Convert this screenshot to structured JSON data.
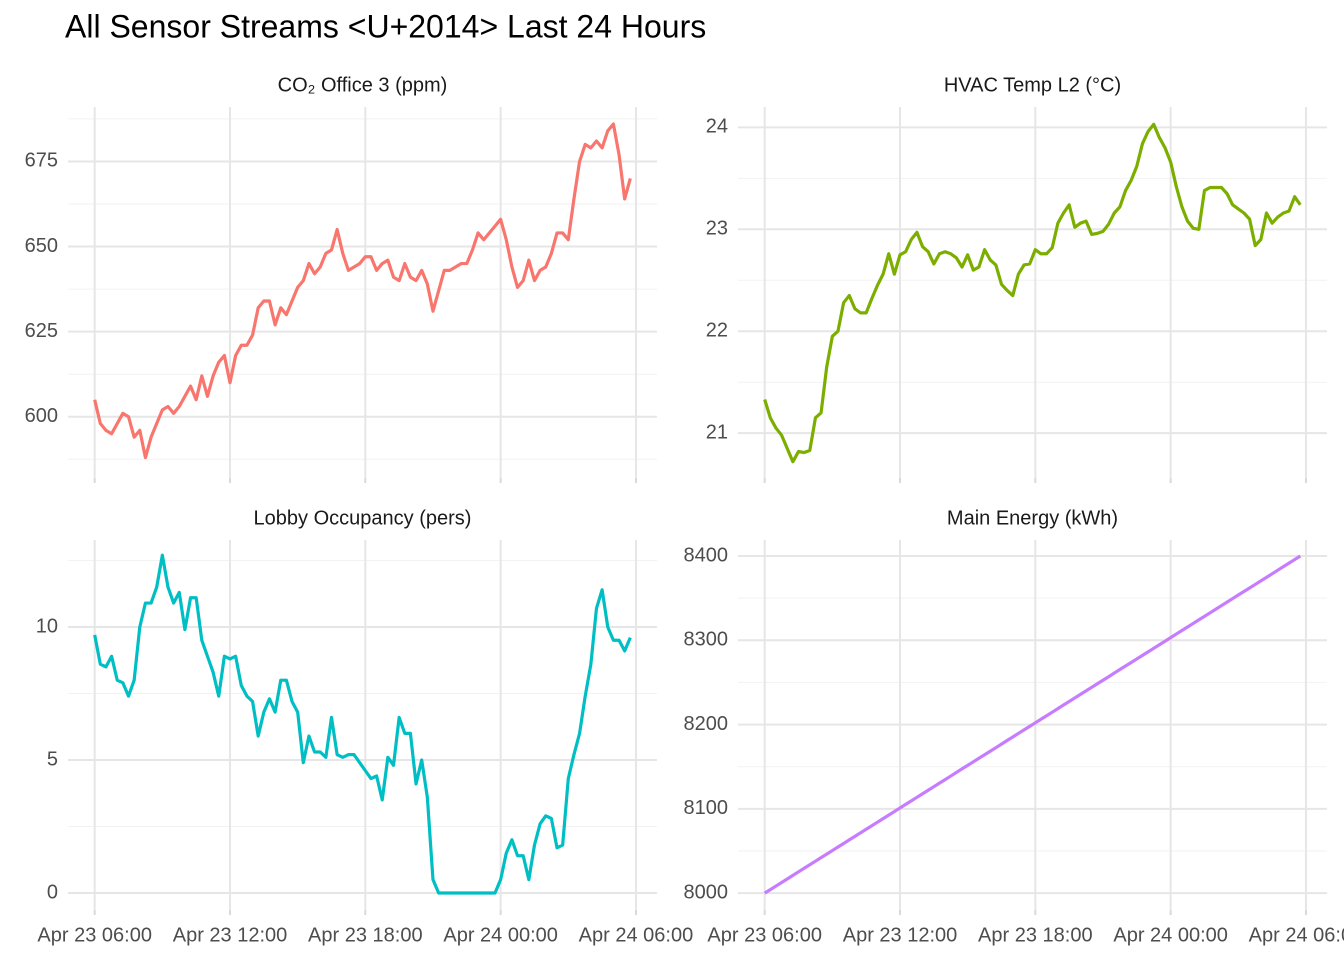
{
  "chart_data": {
    "type": "line",
    "title": "All Sensor Streams <U+2014> Last 24 Hours",
    "grid": true,
    "x": [
      "Apr 23 06:00",
      "Apr 23 06:15",
      "Apr 23 06:30",
      "Apr 23 06:45",
      "Apr 23 07:00",
      "Apr 23 07:15",
      "Apr 23 07:30",
      "Apr 23 07:45",
      "Apr 23 08:00",
      "Apr 23 08:15",
      "Apr 23 08:30",
      "Apr 23 08:45",
      "Apr 23 09:00",
      "Apr 23 09:15",
      "Apr 23 09:30",
      "Apr 23 09:45",
      "Apr 23 10:00",
      "Apr 23 10:15",
      "Apr 23 10:30",
      "Apr 23 10:45",
      "Apr 23 11:00",
      "Apr 23 11:15",
      "Apr 23 11:30",
      "Apr 23 11:45",
      "Apr 23 12:00",
      "Apr 23 12:15",
      "Apr 23 12:30",
      "Apr 23 12:45",
      "Apr 23 13:00",
      "Apr 23 13:15",
      "Apr 23 13:30",
      "Apr 23 13:45",
      "Apr 23 14:00",
      "Apr 23 14:15",
      "Apr 23 14:30",
      "Apr 23 14:45",
      "Apr 23 15:00",
      "Apr 23 15:15",
      "Apr 23 15:30",
      "Apr 23 15:45",
      "Apr 23 16:00",
      "Apr 23 16:15",
      "Apr 23 16:30",
      "Apr 23 16:45",
      "Apr 23 17:00",
      "Apr 23 17:15",
      "Apr 23 17:30",
      "Apr 23 17:45",
      "Apr 23 18:00",
      "Apr 23 18:15",
      "Apr 23 18:30",
      "Apr 23 18:45",
      "Apr 23 19:00",
      "Apr 23 19:15",
      "Apr 23 19:30",
      "Apr 23 19:45",
      "Apr 23 20:00",
      "Apr 23 20:15",
      "Apr 23 20:30",
      "Apr 23 20:45",
      "Apr 23 21:00",
      "Apr 23 21:15",
      "Apr 23 21:30",
      "Apr 23 21:45",
      "Apr 23 22:00",
      "Apr 23 22:15",
      "Apr 23 22:30",
      "Apr 23 22:45",
      "Apr 23 23:00",
      "Apr 23 23:15",
      "Apr 23 23:30",
      "Apr 23 23:45",
      "Apr 24 00:00",
      "Apr 24 00:15",
      "Apr 24 00:30",
      "Apr 24 00:45",
      "Apr 24 01:00",
      "Apr 24 01:15",
      "Apr 24 01:30",
      "Apr 24 01:45",
      "Apr 24 02:00",
      "Apr 24 02:15",
      "Apr 24 02:30",
      "Apr 24 02:45",
      "Apr 24 03:00",
      "Apr 24 03:15",
      "Apr 24 03:30",
      "Apr 24 03:45",
      "Apr 24 04:00",
      "Apr 24 04:15",
      "Apr 24 04:30",
      "Apr 24 04:45",
      "Apr 24 05:00",
      "Apr 24 05:15",
      "Apr 24 05:30",
      "Apr 24 05:45"
    ],
    "xlim": [
      "Apr 23 04:49",
      "Apr 24 06:56"
    ],
    "xticks": [
      "Apr 23 06:00",
      "Apr 23 12:00",
      "Apr 23 18:00",
      "Apr 24 00:00",
      "Apr 24 06:00"
    ],
    "panels": [
      {
        "title": "CO₂ Office 3 (ppm)",
        "color": "#F8766D",
        "ylim": [
          582,
          691
        ],
        "yticks": [
          600,
          625,
          650,
          675
        ],
        "values": [
          605,
          598,
          596,
          595,
          598,
          601,
          600,
          594,
          596,
          588,
          594,
          598,
          602,
          603,
          601,
          603,
          606,
          609,
          605,
          612,
          606,
          612,
          616,
          618,
          610,
          618,
          621,
          621,
          624,
          632,
          634,
          634,
          627,
          632,
          630,
          634,
          638,
          640,
          645,
          642,
          644,
          648,
          649,
          655,
          648,
          643,
          644,
          645,
          647,
          647,
          643,
          645,
          646,
          641,
          640,
          645,
          641,
          640,
          643,
          639,
          631,
          637,
          643,
          643,
          644,
          645,
          645,
          649,
          654,
          652,
          654,
          656,
          658,
          652,
          644,
          638,
          640,
          646,
          640,
          643,
          644,
          648,
          654,
          654,
          652,
          664,
          675,
          680,
          679,
          681,
          679,
          684,
          686,
          677,
          664,
          670
        ]
      },
      {
        "title": "HVAC Temp L2 (°C)",
        "color": "#7CAE00",
        "ylim": [
          20.56,
          24.2
        ],
        "yticks": [
          21,
          22,
          23,
          24
        ],
        "values": [
          21.33,
          21.15,
          21.05,
          20.98,
          20.85,
          20.72,
          20.82,
          20.81,
          20.83,
          21.15,
          21.2,
          21.65,
          21.95,
          22.0,
          22.28,
          22.35,
          22.22,
          22.18,
          22.18,
          22.32,
          22.45,
          22.56,
          22.76,
          22.56,
          22.75,
          22.78,
          22.9,
          22.97,
          22.83,
          22.78,
          22.66,
          22.76,
          22.78,
          22.76,
          22.72,
          22.63,
          22.75,
          22.6,
          22.63,
          22.8,
          22.7,
          22.65,
          22.46,
          22.4,
          22.35,
          22.56,
          22.65,
          22.66,
          22.8,
          22.76,
          22.76,
          22.82,
          23.06,
          23.16,
          23.24,
          23.02,
          23.06,
          23.08,
          22.95,
          22.96,
          22.98,
          23.05,
          23.16,
          23.22,
          23.38,
          23.48,
          23.62,
          23.84,
          23.96,
          24.03,
          23.9,
          23.8,
          23.66,
          23.42,
          23.22,
          23.08,
          23.01,
          23.0,
          23.38,
          23.41,
          23.41,
          23.41,
          23.35,
          23.24,
          23.2,
          23.16,
          23.1,
          22.84,
          22.9,
          23.16,
          23.06,
          23.12,
          23.16,
          23.18,
          23.32,
          23.24
        ]
      },
      {
        "title": "Lobby Occupancy (pers)",
        "color": "#00BFC4",
        "ylim": [
          -0.64,
          13.27
        ],
        "yticks": [
          0,
          5,
          10
        ],
        "values": [
          9.7,
          8.6,
          8.5,
          8.9,
          8.0,
          7.9,
          7.4,
          8.0,
          10.0,
          10.9,
          10.9,
          11.5,
          12.7,
          11.5,
          10.9,
          11.3,
          9.9,
          11.1,
          11.1,
          9.5,
          8.9,
          8.3,
          7.4,
          8.9,
          8.8,
          8.9,
          7.8,
          7.4,
          7.2,
          5.9,
          6.8,
          7.3,
          6.8,
          8.0,
          8.0,
          7.2,
          6.8,
          4.9,
          5.9,
          5.3,
          5.3,
          5.1,
          6.6,
          5.2,
          5.1,
          5.2,
          5.2,
          4.9,
          4.6,
          4.3,
          4.4,
          3.5,
          5.1,
          4.8,
          6.6,
          6.0,
          6.0,
          4.1,
          5.0,
          3.6,
          0.5,
          0,
          0,
          0,
          0,
          0,
          0,
          0,
          0,
          0,
          0,
          0,
          0.5,
          1.5,
          2.0,
          1.4,
          1.4,
          0.5,
          1.8,
          2.6,
          2.9,
          2.8,
          1.7,
          1.8,
          4.3,
          5.2,
          6.0,
          7.4,
          8.6,
          10.7,
          11.4,
          10.0,
          9.5,
          9.5,
          9.1,
          9.6
        ]
      },
      {
        "title": "Main Energy (kWh)",
        "color": "#C77CFF",
        "ylim": [
          7980,
          8419
        ],
        "yticks": [
          8000,
          8100,
          8200,
          8300,
          8400
        ],
        "values": [
          8000.0,
          8004.2,
          8008.4,
          8012.6,
          8016.8,
          8021.1,
          8025.3,
          8029.5,
          8033.7,
          8037.9,
          8042.1,
          8046.3,
          8050.5,
          8054.7,
          8058.9,
          8063.2,
          8067.4,
          8071.6,
          8075.8,
          8080.0,
          8084.2,
          8088.4,
          8092.6,
          8096.8,
          8101.1,
          8105.3,
          8109.5,
          8113.7,
          8117.9,
          8122.1,
          8126.3,
          8130.5,
          8134.7,
          8138.9,
          8143.2,
          8147.4,
          8151.6,
          8155.8,
          8160.0,
          8164.2,
          8168.4,
          8172.6,
          8176.8,
          8181.1,
          8185.3,
          8189.5,
          8193.7,
          8197.9,
          8202.1,
          8206.3,
          8210.5,
          8214.7,
          8218.9,
          8223.2,
          8227.4,
          8231.6,
          8235.8,
          8240.0,
          8244.2,
          8248.4,
          8252.6,
          8256.8,
          8261.1,
          8265.3,
          8269.5,
          8273.7,
          8277.9,
          8282.1,
          8286.3,
          8290.5,
          8294.7,
          8298.9,
          8303.2,
          8307.4,
          8311.6,
          8315.8,
          8320.0,
          8324.2,
          8328.4,
          8332.6,
          8336.8,
          8341.1,
          8345.3,
          8349.5,
          8353.7,
          8357.9,
          8362.1,
          8366.3,
          8370.5,
          8374.7,
          8378.9,
          8383.2,
          8387.4,
          8391.6,
          8395.8,
          8400.0
        ]
      }
    ]
  }
}
